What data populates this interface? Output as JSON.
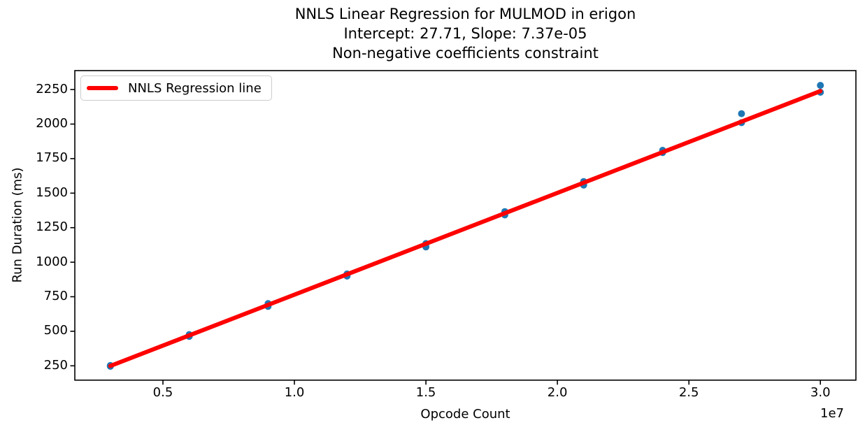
{
  "figure": {
    "background": "#ffffff",
    "text_color": "#000000",
    "axis_color": "#000000"
  },
  "chart_data": {
    "type": "scatter",
    "title_lines": [
      "NNLS Linear Regression for MULMOD in erigon",
      "Intercept: 27.71, Slope: 7.37e-05",
      "Non-negative coefficients constraint"
    ],
    "xlabel": "Opcode Count",
    "ylabel": "Run Duration (ms)",
    "x_offset_label": "1e7",
    "xlim": [
      1650000,
      31350000
    ],
    "ylim": [
      146,
      2387
    ],
    "grid": false,
    "x_ticks": {
      "values": [
        5000000,
        10000000,
        15000000,
        20000000,
        25000000,
        30000000
      ],
      "labels": [
        "0.5",
        "1.0",
        "1.5",
        "2.0",
        "2.5",
        "3.0"
      ]
    },
    "y_ticks": {
      "values": [
        250,
        500,
        750,
        1000,
        1250,
        1500,
        1750,
        2000,
        2250
      ],
      "labels": [
        "250",
        "500",
        "750",
        "1000",
        "1250",
        "1500",
        "1750",
        "2000",
        "2250"
      ]
    },
    "scatter_series": {
      "color": "#1f77b4",
      "marker_radius": 5,
      "points": [
        [
          3000000,
          252
        ],
        [
          3000000,
          246
        ],
        [
          6000000,
          476
        ],
        [
          6000000,
          463
        ],
        [
          9000000,
          700
        ],
        [
          9000000,
          680
        ],
        [
          12000000,
          915
        ],
        [
          12000000,
          899
        ],
        [
          15000000,
          1135
        ],
        [
          15000000,
          1110
        ],
        [
          18000000,
          1366
        ],
        [
          18000000,
          1342
        ],
        [
          21000000,
          1584
        ],
        [
          21000000,
          1558
        ],
        [
          24000000,
          1810
        ],
        [
          24000000,
          1794
        ],
        [
          27000000,
          2075
        ],
        [
          27000000,
          2010
        ],
        [
          30000000,
          2280
        ],
        [
          30000000,
          2230
        ]
      ]
    },
    "regression": {
      "label": "NNLS Regression line",
      "color": "#ff0000",
      "intercept": 27.71,
      "slope": 7.37e-05,
      "x_range": [
        3000000,
        30000000
      ],
      "line_width": 6
    },
    "legend": {
      "location": "upper left"
    }
  }
}
